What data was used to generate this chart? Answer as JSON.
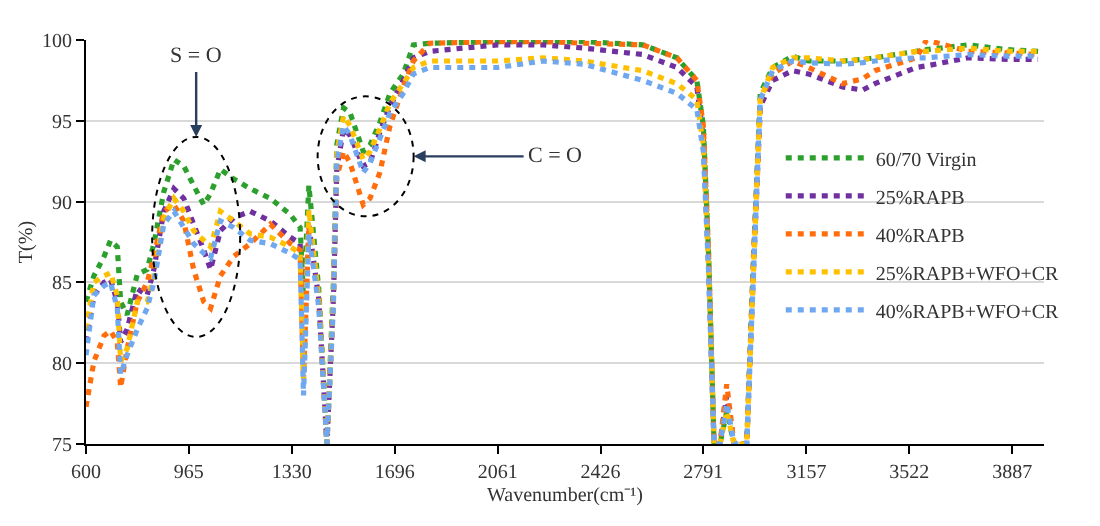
{
  "chart_data": {
    "type": "line",
    "xlabel": "Wavenumber(cm⁻¹)",
    "ylabel": "T(%)",
    "x": [
      600,
      628,
      664,
      687,
      711,
      723,
      746,
      782,
      817,
      841,
      876,
      912,
      947,
      982,
      1018,
      1042,
      1077,
      1124,
      1183,
      1254,
      1325,
      1360,
      1372,
      1391,
      1426,
      1455,
      1478,
      1490,
      1514,
      1537,
      1584,
      1608,
      1643,
      1679,
      1726,
      1762,
      1820,
      2061,
      2222,
      2367,
      2576,
      2697,
      2768,
      2791,
      2810,
      2829,
      2850,
      2874,
      2900,
      2945,
      2969,
      2993,
      3037,
      3108,
      3164,
      3285,
      3356,
      3400,
      3547,
      3583,
      3731,
      3873,
      3979
    ],
    "series": [
      {
        "name": "60/70 Virgin",
        "color": "#2ca02c",
        "values": [
          83.8,
          85.4,
          86.6,
          87.6,
          87.2,
          83.8,
          83.0,
          85.5,
          85.8,
          87.4,
          90.6,
          92.6,
          92.2,
          91.0,
          89.8,
          90.5,
          92.0,
          91.4,
          90.8,
          90.2,
          89.2,
          88.4,
          84,
          91.0,
          84.6,
          75,
          85,
          93.5,
          95.8,
          95.5,
          93.1,
          93.5,
          94.9,
          96.7,
          97.9,
          99.7,
          99.8,
          99.9,
          99.9,
          99.9,
          99.7,
          98.9,
          97.5,
          94.7,
          86.6,
          75,
          75,
          77,
          75,
          75,
          86.6,
          96.7,
          98.3,
          99.0,
          98.7,
          98.7,
          98.8,
          98.9,
          99.3,
          99.4,
          99.7,
          99.4,
          99.3
        ]
      },
      {
        "name": "25%RAPB",
        "color": "#7030a0",
        "values": [
          81.3,
          84.2,
          85.0,
          85.2,
          83.8,
          81.3,
          82.1,
          84.6,
          84.2,
          85.8,
          89.4,
          90.8,
          90.2,
          88.6,
          87.0,
          85.8,
          88.2,
          89.0,
          89.4,
          88.8,
          87.8,
          87.4,
          80.5,
          88.5,
          84,
          75,
          84,
          92,
          94.5,
          94.1,
          92.2,
          92.4,
          94.3,
          95.9,
          97.5,
          98.9,
          99.3,
          99.7,
          99.7,
          99.5,
          99.1,
          98.3,
          97.1,
          93.9,
          85.8,
          75,
          75,
          78,
          75,
          75,
          85.8,
          95.9,
          97.5,
          98.1,
          97.9,
          97.1,
          96.9,
          97.3,
          98.3,
          98.4,
          98.9,
          98.8,
          98.8
        ]
      },
      {
        "name": "40%RAPB",
        "color": "#ff6d0d",
        "values": [
          77.3,
          80.1,
          81.7,
          82.0,
          81.3,
          78.5,
          80.9,
          83.8,
          85.0,
          86.6,
          89.4,
          89.8,
          88.8,
          85.8,
          83.8,
          83.4,
          85.4,
          86.6,
          87.4,
          88.6,
          87.4,
          87.0,
          79,
          88.5,
          84,
          75,
          84,
          91.5,
          93.1,
          92.4,
          89.8,
          90.2,
          91.8,
          94.7,
          97.1,
          98.7,
          99.8,
          99.9,
          99.9,
          99.8,
          99.7,
          98.9,
          97.5,
          94.7,
          86.6,
          75,
          75,
          78.7,
          75,
          75,
          86.6,
          96.3,
          97.9,
          98.7,
          98.3,
          97.3,
          97.6,
          98.1,
          98.9,
          100,
          99.3,
          99.2,
          99.1
        ]
      },
      {
        "name": "25%RAPB+WFO+CR",
        "color": "#ffc000",
        "values": [
          82.1,
          85.0,
          85.4,
          85.6,
          84.2,
          80.1,
          80.9,
          83.8,
          83.8,
          85.4,
          89.0,
          90.2,
          89.4,
          88.2,
          87.6,
          87.2,
          89.4,
          88.8,
          88.0,
          87.8,
          87.2,
          86.8,
          79,
          89.5,
          84,
          75,
          84,
          93,
          95.3,
          94.7,
          92.6,
          93.1,
          94.5,
          96.1,
          97.3,
          98.3,
          98.7,
          98.7,
          98.9,
          98.7,
          98.1,
          97.3,
          96.3,
          93.5,
          85.8,
          75,
          75,
          77,
          75,
          75,
          85.8,
          96.3,
          98.3,
          98.9,
          98.9,
          98.7,
          98.8,
          98.9,
          99.3,
          99.3,
          99.5,
          99.3,
          99.3
        ]
      },
      {
        "name": "40%RAPB+WFO+CR",
        "color": "#6fa8f0",
        "values": [
          80.5,
          84.2,
          84.8,
          85.0,
          83.4,
          79.3,
          80.5,
          82.1,
          83.4,
          85.0,
          88.6,
          89.4,
          88.4,
          87.4,
          86.8,
          86.5,
          88.8,
          88.4,
          87.6,
          87.4,
          86.8,
          86.4,
          78,
          88,
          83.5,
          75,
          83.5,
          92.5,
          94.7,
          94.1,
          91.8,
          92.4,
          93.9,
          95.5,
          96.7,
          97.9,
          98.3,
          98.3,
          98.7,
          98.5,
          97.5,
          96.7,
          95.7,
          93.1,
          85.5,
          75,
          75,
          77.5,
          75,
          75,
          85.5,
          96.3,
          98.1,
          98.7,
          98.6,
          98.5,
          98.6,
          98.7,
          98.9,
          98.9,
          99.1,
          99.0,
          99.0
        ]
      }
    ],
    "xlim": [
      600,
      4000
    ],
    "xticks": [
      600,
      965,
      1330,
      1696,
      2061,
      2426,
      2791,
      3157,
      3522,
      3887
    ],
    "ylim": [
      75,
      100
    ],
    "yticks": [
      75,
      80,
      85,
      90,
      95,
      100
    ],
    "annotations": [
      "S = O",
      "C = O"
    ],
    "grid": "y",
    "legend": "right",
    "line_style": "dotted",
    "marker": "none"
  }
}
